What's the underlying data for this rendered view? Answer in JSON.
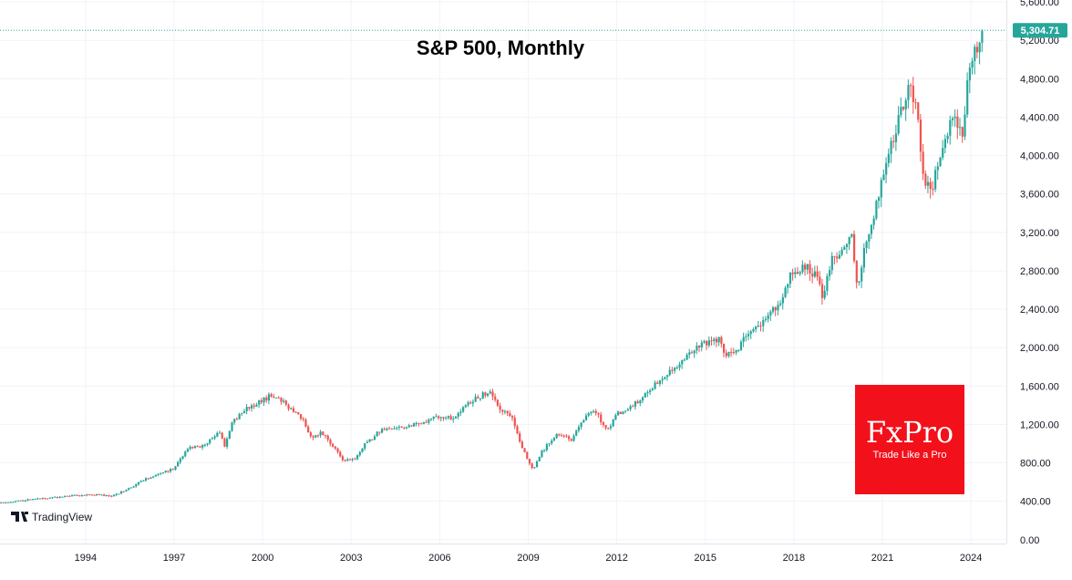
{
  "chart_data": {
    "type": "candlestick",
    "title": "S&P 500, Monthly",
    "xlabel": "",
    "ylabel": "",
    "ylim": [
      -40,
      5620
    ],
    "xlim": [
      1991.1,
      2025.2
    ],
    "y_ticks": [
      0,
      400,
      800,
      1200,
      1600,
      2000,
      2400,
      2800,
      3200,
      3600,
      4000,
      4400,
      4800,
      5200,
      5600
    ],
    "y_tick_labels": [
      "0.00",
      "400.00",
      "800.00",
      "1,200.00",
      "1,600.00",
      "2,000.00",
      "2,400.00",
      "2,800.00",
      "3,200.00",
      "3,600.00",
      "4,000.00",
      "4,400.00",
      "4,800.00",
      "5,200.00",
      "5,600.00"
    ],
    "x_ticks": [
      1994,
      1997,
      2000,
      2003,
      2006,
      2009,
      2012,
      2015,
      2018,
      2021,
      2024
    ],
    "x_tick_labels": [
      "1994",
      "1997",
      "2000",
      "2003",
      "2006",
      "2009",
      "2012",
      "2015",
      "2018",
      "2021",
      "2024"
    ],
    "last_price": 5304.71,
    "last_price_label": "5,304.71",
    "up_color": "#26a69a",
    "down_color": "#ef5350",
    "grid": true,
    "anchors": [
      [
        1991.0,
        375
      ],
      [
        1992.0,
        415
      ],
      [
        1993.0,
        440
      ],
      [
        1994.0,
        470
      ],
      [
        1995.0,
        460
      ],
      [
        1996.0,
        620
      ],
      [
        1997.0,
        740
      ],
      [
        1997.5,
        950
      ],
      [
        1998.0,
        980
      ],
      [
        1998.6,
        1130
      ],
      [
        1998.75,
        970
      ],
      [
        1999.0,
        1230
      ],
      [
        1999.5,
        1370
      ],
      [
        2000.0,
        1440
      ],
      [
        2000.3,
        1500
      ],
      [
        2000.7,
        1440
      ],
      [
        2001.0,
        1360
      ],
      [
        2001.4,
        1250
      ],
      [
        2001.7,
        1040
      ],
      [
        2002.0,
        1130
      ],
      [
        2002.5,
        950
      ],
      [
        2002.75,
        820
      ],
      [
        2003.2,
        850
      ],
      [
        2003.5,
        990
      ],
      [
        2004.0,
        1130
      ],
      [
        2005.0,
        1180
      ],
      [
        2006.0,
        1280
      ],
      [
        2006.5,
        1270
      ],
      [
        2007.0,
        1430
      ],
      [
        2007.5,
        1510
      ],
      [
        2007.8,
        1540
      ],
      [
        2008.0,
        1390
      ],
      [
        2008.5,
        1280
      ],
      [
        2008.8,
        970
      ],
      [
        2009.2,
        740
      ],
      [
        2009.5,
        920
      ],
      [
        2010.0,
        1110
      ],
      [
        2010.5,
        1040
      ],
      [
        2011.0,
        1290
      ],
      [
        2011.3,
        1350
      ],
      [
        2011.7,
        1130
      ],
      [
        2012.0,
        1300
      ],
      [
        2012.5,
        1380
      ],
      [
        2013.0,
        1500
      ],
      [
        2013.5,
        1680
      ],
      [
        2014.0,
        1800
      ],
      [
        2014.5,
        1950
      ],
      [
        2015.0,
        2050
      ],
      [
        2015.5,
        2100
      ],
      [
        2015.7,
        1920
      ],
      [
        2016.0,
        1940
      ],
      [
        2016.5,
        2150
      ],
      [
        2017.0,
        2280
      ],
      [
        2017.5,
        2450
      ],
      [
        2018.0,
        2800
      ],
      [
        2018.5,
        2850
      ],
      [
        2018.9,
        2700
      ],
      [
        2018.97,
        2500
      ],
      [
        2019.3,
        2900
      ],
      [
        2019.6,
        2950
      ],
      [
        2020.0,
        3230
      ],
      [
        2020.2,
        2580
      ],
      [
        2020.4,
        3000
      ],
      [
        2020.7,
        3300
      ],
      [
        2021.0,
        3750
      ],
      [
        2021.5,
        4300
      ],
      [
        2021.95,
        4760
      ],
      [
        2022.2,
        4450
      ],
      [
        2022.45,
        3780
      ],
      [
        2022.7,
        3600
      ],
      [
        2023.0,
        4050
      ],
      [
        2023.5,
        4450
      ],
      [
        2023.75,
        4200
      ],
      [
        2023.92,
        4770
      ],
      [
        2024.2,
        5240
      ],
      [
        2024.3,
        5040
      ],
      [
        2024.38,
        5300
      ]
    ]
  },
  "watermark": {
    "tradingview_label": "TradingView",
    "brand_logo": "FxPro",
    "brand_tagline": "Trade Like a Pro",
    "brand_color": "#f2101a"
  }
}
